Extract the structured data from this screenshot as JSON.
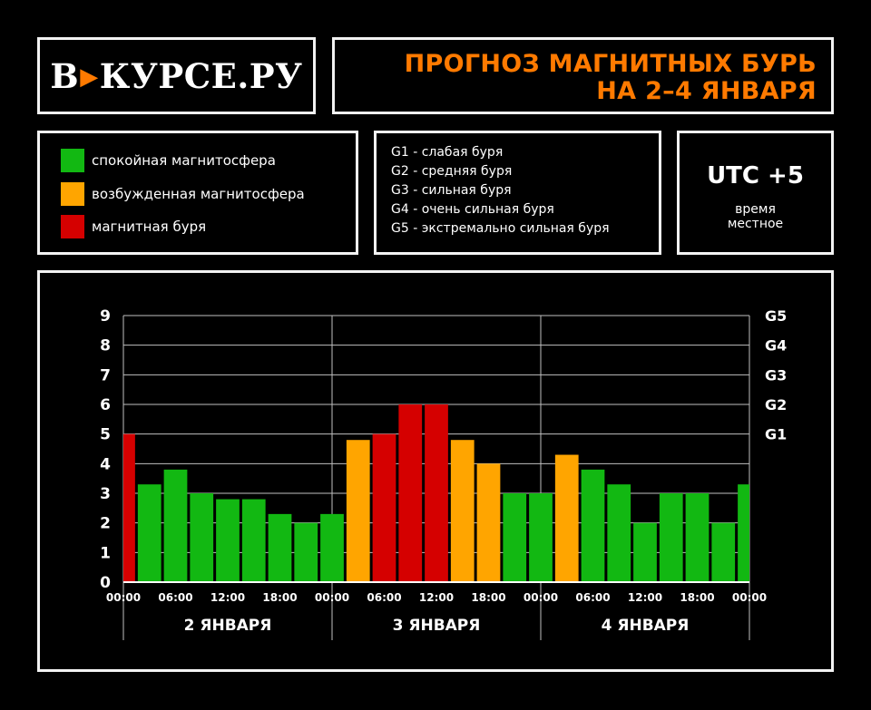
{
  "header": {
    "logo": {
      "left": "В",
      "right": "КУРСЕ.РУ"
    },
    "title_line1": "ПРОГНОЗ МАГНИТНЫХ БУРЬ",
    "title_line2": "НА 2–4 ЯНВАРЯ"
  },
  "legend": [
    {
      "label": "спокойная магнитосфера",
      "color": "#12b812"
    },
    {
      "label": "возбужденная магнитосфера",
      "color": "#ffa500"
    },
    {
      "label": "магнитная буря",
      "color": "#d50000"
    }
  ],
  "storm_scale": [
    "G1 - слабая буря",
    "G2 - средняя буря",
    "G3 - сильная буря",
    "G4 - очень сильная буря",
    "G5 - экстремально сильная буря"
  ],
  "timezone": {
    "main": "UTC +5",
    "sub1": "время",
    "sub2": "местное"
  },
  "chart_data": {
    "type": "bar",
    "y_ticks": [
      "0",
      "1",
      "2",
      "3",
      "4",
      "5",
      "6",
      "7",
      "8",
      "9"
    ],
    "ylim": [
      0,
      9
    ],
    "g_ticks": [
      {
        "label": "G1",
        "value": 5
      },
      {
        "label": "G2",
        "value": 6
      },
      {
        "label": "G3",
        "value": 7
      },
      {
        "label": "G4",
        "value": 8
      },
      {
        "label": "G5",
        "value": 9
      }
    ],
    "x_ticks": [
      "00:00",
      "06:00",
      "12:00",
      "18:00",
      "00:00",
      "06:00",
      "12:00",
      "18:00",
      "00:00",
      "06:00",
      "12:00",
      "18:00",
      "00:00"
    ],
    "days": [
      "2 ЯНВАРЯ",
      "3 ЯНВАРЯ",
      "4 ЯНВАРЯ"
    ],
    "bar_width_hours": 3,
    "values": [
      5.0,
      3.3,
      3.8,
      3.0,
      2.8,
      2.8,
      2.3,
      2.0,
      2.3,
      4.8,
      5.0,
      6.0,
      6.0,
      4.8,
      4.0,
      3.0,
      3.0,
      4.3,
      3.8,
      3.3,
      2.0,
      3.0,
      3.0,
      2.0,
      3.3
    ],
    "levels": [
      "storm",
      "calm",
      "calm",
      "calm",
      "calm",
      "calm",
      "calm",
      "calm",
      "calm",
      "active",
      "storm",
      "storm",
      "storm",
      "active",
      "active",
      "calm",
      "calm",
      "active",
      "calm",
      "calm",
      "calm",
      "calm",
      "calm",
      "calm",
      "calm"
    ],
    "level_colors": {
      "calm": "#12b812",
      "active": "#ffa500",
      "storm": "#d50000"
    },
    "grid": true
  }
}
